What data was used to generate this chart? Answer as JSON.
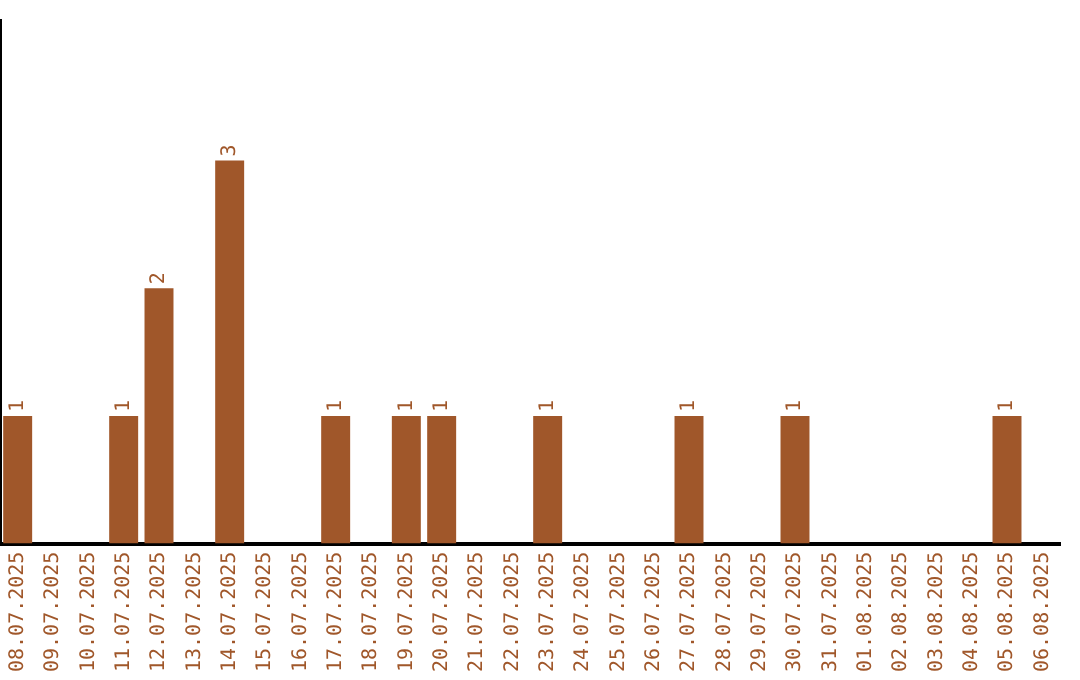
{
  "chart_data": {
    "type": "bar",
    "categories": [
      "08.07.2025",
      "09.07.2025",
      "10.07.2025",
      "11.07.2025",
      "12.07.2025",
      "13.07.2025",
      "14.07.2025",
      "15.07.2025",
      "16.07.2025",
      "17.07.2025",
      "18.07.2025",
      "19.07.2025",
      "20.07.2025",
      "21.07.2025",
      "22.07.2025",
      "23.07.2025",
      "24.07.2025",
      "25.07.2025",
      "26.07.2025",
      "27.07.2025",
      "28.07.2025",
      "29.07.2025",
      "30.07.2025",
      "31.07.2025",
      "01.08.2025",
      "02.08.2025",
      "03.08.2025",
      "04.08.2025",
      "05.08.2025",
      "06.08.2025"
    ],
    "values": [
      1,
      0,
      0,
      1,
      2,
      0,
      3,
      0,
      0,
      1,
      0,
      1,
      1,
      0,
      0,
      1,
      0,
      0,
      0,
      1,
      0,
      0,
      1,
      0,
      0,
      0,
      0,
      0,
      1,
      0
    ],
    "value_labels": [
      "1",
      null,
      null,
      "1",
      "2",
      null,
      "3",
      null,
      null,
      "1",
      null,
      "1",
      "1",
      null,
      null,
      "1",
      null,
      null,
      null,
      "1",
      null,
      null,
      "1",
      null,
      null,
      null,
      null,
      null,
      "1",
      null
    ],
    "color": "#a0572a",
    "ylim": [
      0,
      4.1
    ],
    "tick_labels": "x",
    "grid": false,
    "legend": false
  }
}
